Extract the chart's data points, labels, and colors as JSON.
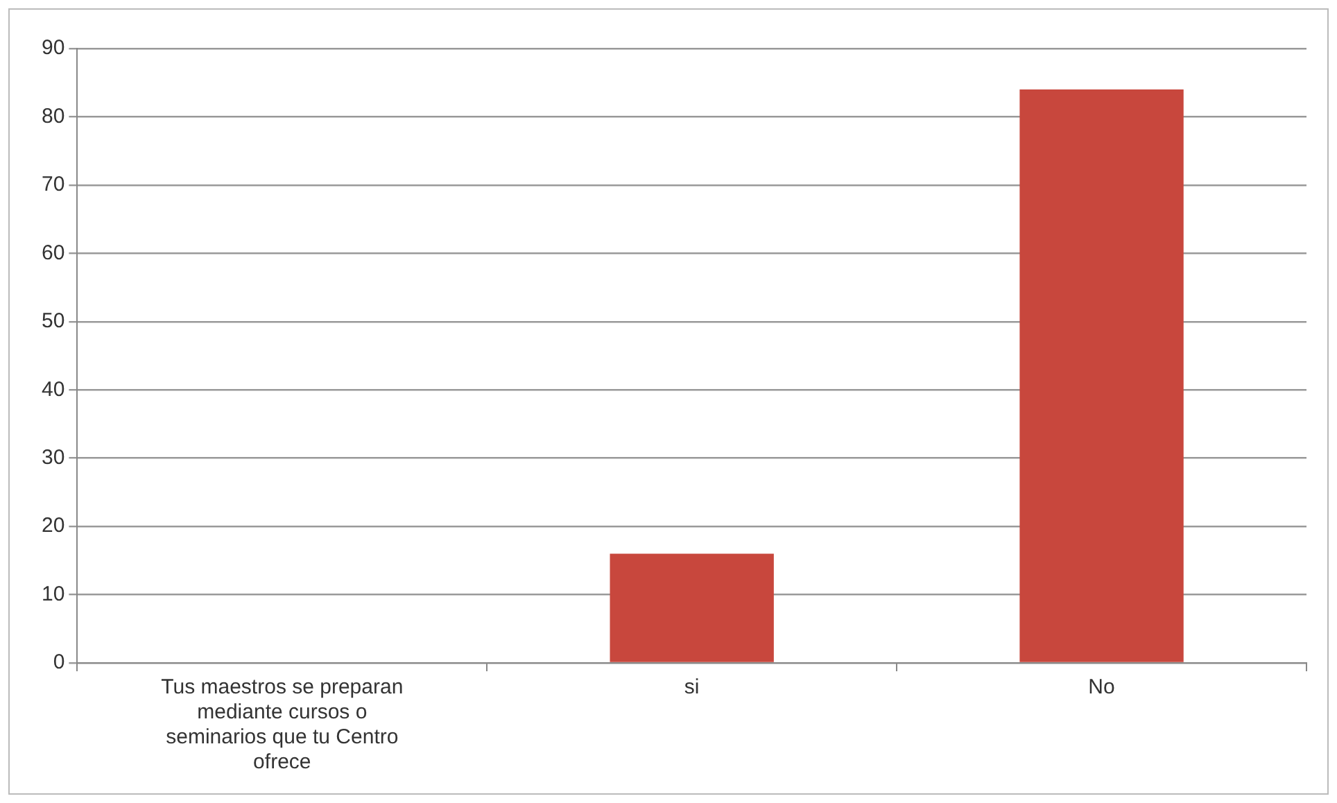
{
  "chart_data": {
    "type": "bar",
    "categories": [
      "Tus maestros se preparan mediante cursos o seminarios que tu Centro ofrece",
      "si",
      "No"
    ],
    "values": [
      null,
      16,
      84
    ],
    "color": "#c8473d",
    "ylim": [
      0,
      90
    ],
    "yticks": [
      0,
      10,
      20,
      30,
      40,
      50,
      60,
      70,
      80,
      90
    ],
    "grid": "y",
    "legend": false
  }
}
